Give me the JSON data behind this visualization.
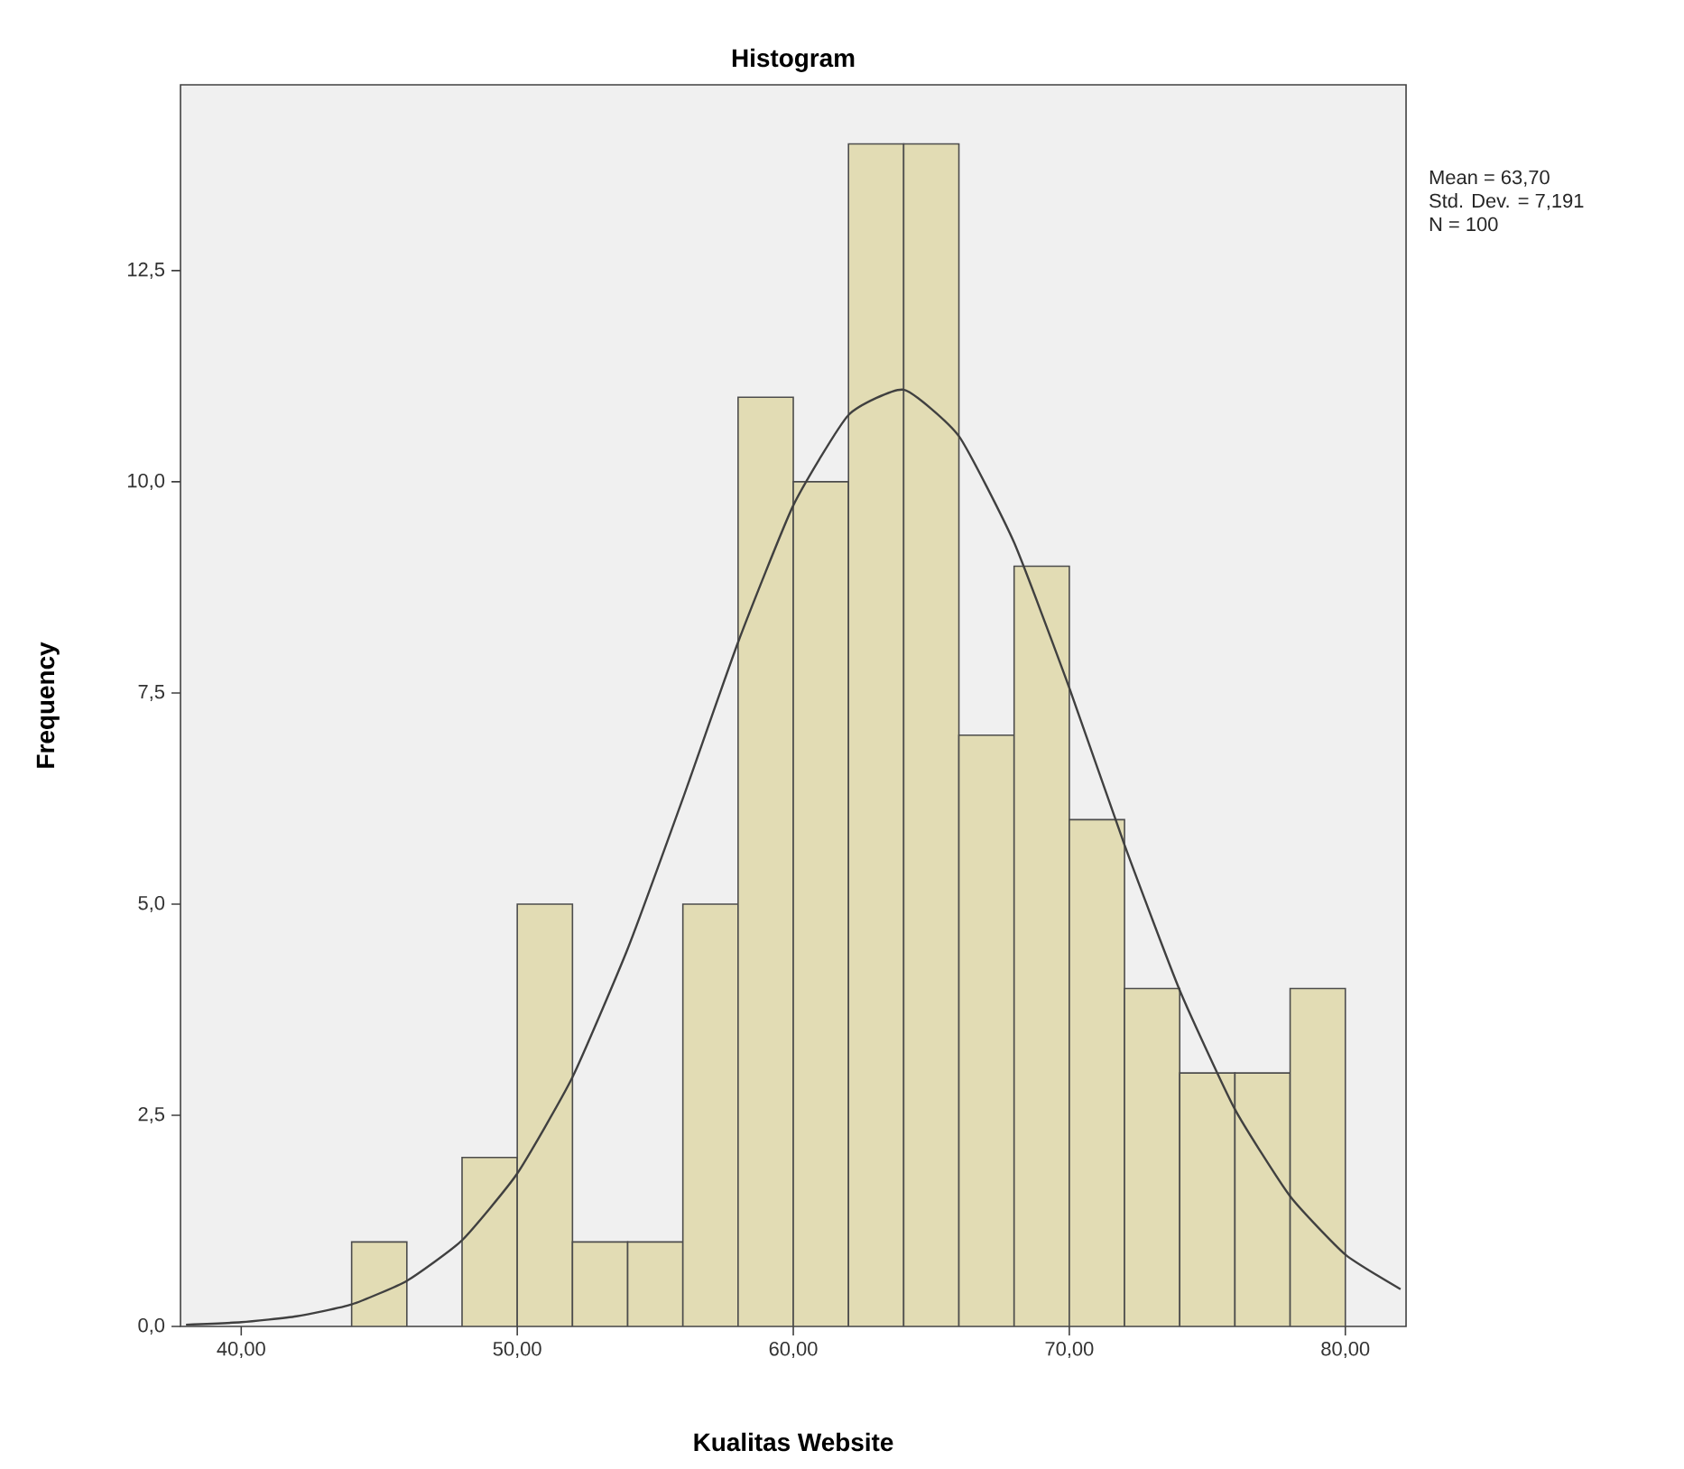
{
  "chart_data": {
    "type": "histogram",
    "title": "Histogram",
    "xlabel": "Kualitas Website",
    "ylabel": "Frequency",
    "annotations": [
      "Mean = 63,70",
      "Std. Dev. = 7,191",
      "N = 100"
    ],
    "bins": [
      44,
      46,
      48,
      50,
      52,
      54,
      56,
      58,
      60,
      62,
      64,
      66,
      68,
      70,
      72,
      74,
      76,
      78,
      80
    ],
    "values": [
      1,
      0,
      2,
      5,
      1,
      1,
      5,
      11,
      10,
      14,
      14,
      7,
      9,
      6,
      4,
      3,
      3,
      4
    ],
    "color": "#e2dcb4",
    "series": [
      {
        "type": "line",
        "color": "#404040",
        "x": [
          38,
          40,
          42,
          44,
          46,
          48,
          50,
          52,
          54,
          56,
          58,
          60,
          62,
          64,
          66,
          68,
          70,
          72,
          74,
          76,
          78,
          80,
          82
        ],
        "values": [
          0.02,
          0.05,
          0.12,
          0.26,
          0.54,
          1.02,
          1.81,
          2.95,
          4.47,
          6.25,
          8.1,
          9.72,
          10.79,
          11.09,
          10.54,
          9.28,
          7.56,
          5.7,
          3.98,
          2.57,
          1.54,
          0.85,
          0.44
        ]
      }
    ],
    "xlim": [
      37.8,
      82.2
    ],
    "ylim": [
      0,
      14.7
    ],
    "xticks": [
      {
        "value": 40,
        "label": "40,00"
      },
      {
        "value": 50,
        "label": "50,00"
      },
      {
        "value": 60,
        "label": "60,00"
      },
      {
        "value": 70,
        "label": "70,00"
      },
      {
        "value": 80,
        "label": "80,00"
      }
    ],
    "yticks": [
      {
        "value": 0,
        "label": "0,0"
      },
      {
        "value": 2.5,
        "label": "2,5"
      },
      {
        "value": 5,
        "label": "5,0"
      },
      {
        "value": 7.5,
        "label": "7,5"
      },
      {
        "value": 10,
        "label": "10,0"
      },
      {
        "value": 12.5,
        "label": "12,5"
      }
    ],
    "grid": false
  }
}
